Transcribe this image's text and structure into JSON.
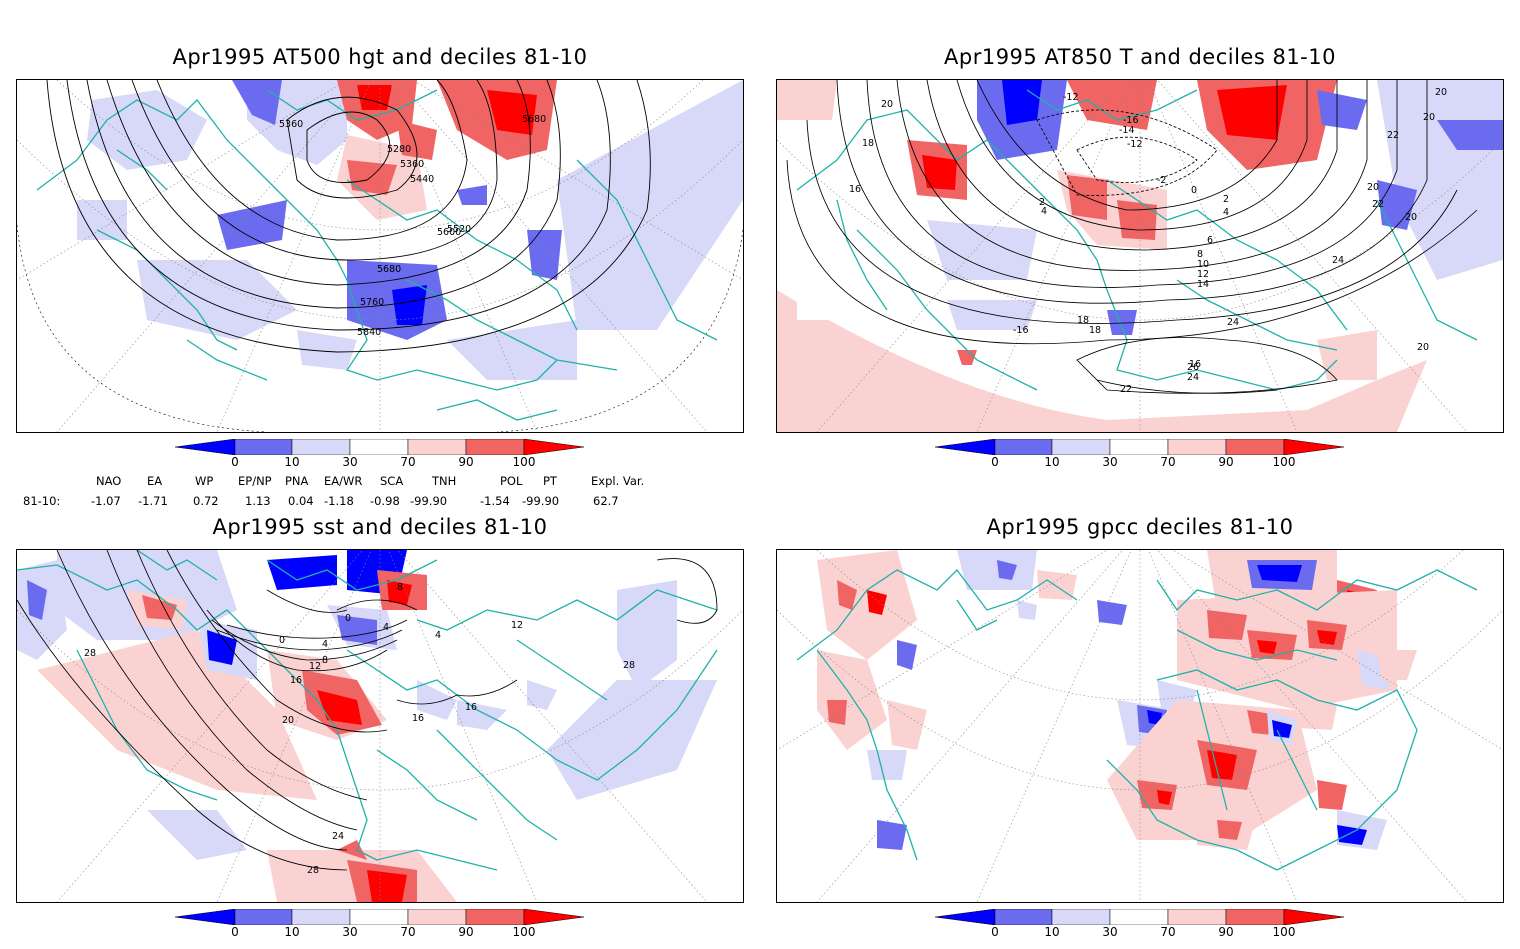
{
  "panels": {
    "top_left": {
      "title": "Apr1995 AT500 hgt and deciles 81-10",
      "contour_labels": [
        "5360",
        "5280",
        "5360",
        "5440",
        "5520",
        "5600",
        "5680",
        "5760",
        "5840",
        "5680"
      ]
    },
    "top_right": {
      "title": "Apr1995 AT850 T and deciles 81-10",
      "contour_labels": [
        "20",
        "18",
        "16",
        "-12",
        "-16",
        "-14",
        "-12",
        "2",
        "4",
        "-2",
        "0",
        "2",
        "4",
        "6",
        "8",
        "10",
        "12",
        "14",
        "-16",
        "18",
        "20",
        "24",
        "22",
        "20",
        "20",
        "22",
        "24",
        "26",
        "24",
        "22",
        "20",
        "16",
        "20",
        "18"
      ]
    },
    "bottom_left": {
      "title": "Apr1995 sst and deciles 81-10",
      "contour_labels": [
        "28",
        "0",
        "4",
        "4",
        "8",
        "12",
        "16",
        "20",
        "16",
        "16",
        "24",
        "28",
        "8",
        "12",
        "0",
        "4",
        "28"
      ]
    },
    "bottom_right": {
      "title": "Apr1995 gpcc deciles 81-10"
    }
  },
  "colorbar": {
    "ticks": [
      "0",
      "10",
      "30",
      "70",
      "90",
      "100"
    ],
    "colors": [
      "#0000ff",
      "#6b6bf0",
      "#d8d8f8",
      "#ffffff",
      "#fbd2d2",
      "#f06464",
      "#ff0000"
    ]
  },
  "indices": {
    "headers": [
      "NAO",
      "EA",
      "WP",
      "EP/NP",
      "PNA",
      "EA/WR",
      "SCA",
      "TNH",
      "POL",
      "PT",
      "Expl. Var."
    ],
    "row_label": "81-10:",
    "values": [
      "-1.07",
      "-1.71",
      "0.72",
      "1.13",
      "0.04",
      "-1.18",
      "-0.98",
      "-99.90",
      "-1.54",
      "-99.90",
      "62.7"
    ]
  },
  "map_colors": {
    "coast": "#20b2aa",
    "grid": "#888888",
    "contour": "#000000"
  }
}
